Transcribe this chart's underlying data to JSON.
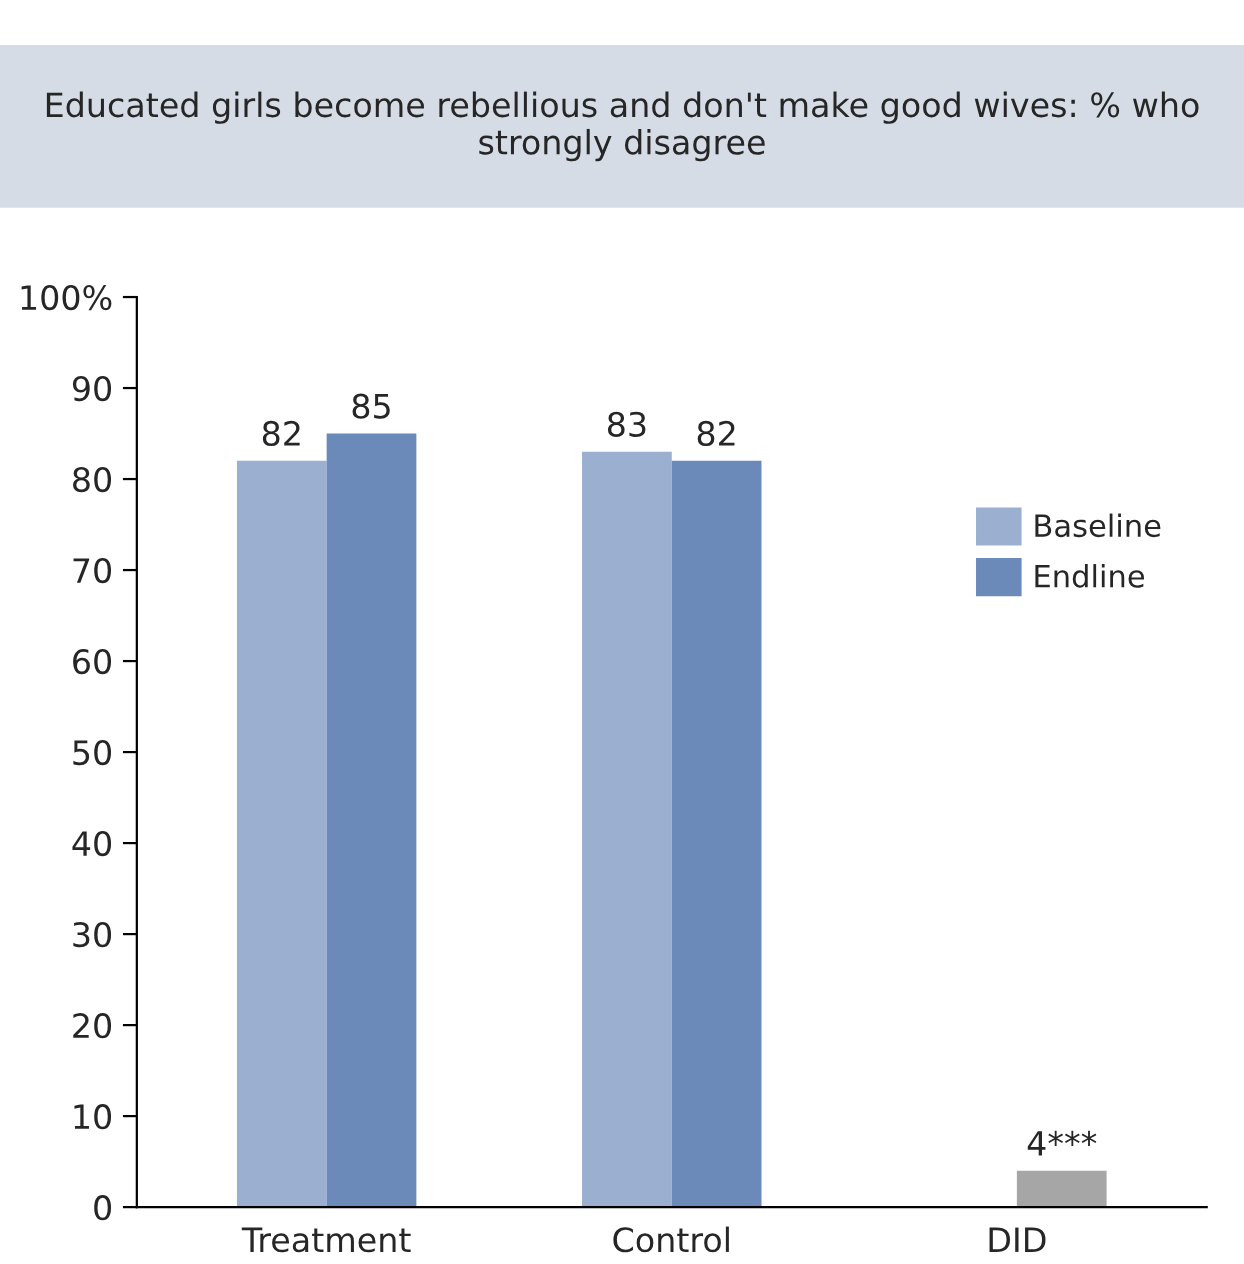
{
  "chart_data": {
    "type": "bar",
    "title": "Educated girls become rebellious and don't make good wives: % who strongly disagree",
    "categories": [
      "Treatment",
      "Control",
      "DID"
    ],
    "series": [
      {
        "name": "Baseline",
        "color": "#9bafd0",
        "values": [
          82,
          83,
          null
        ],
        "value_labels": [
          "82",
          "83",
          null
        ]
      },
      {
        "name": "Endline",
        "color": "#6b8aba",
        "colors": [
          "#6b8aba",
          "#6b8aba",
          "#a6a6a6"
        ],
        "values": [
          85,
          82,
          4
        ],
        "value_labels": [
          "85",
          "82",
          "4***"
        ]
      }
    ],
    "ylim": [
      0,
      100
    ],
    "yticks": [
      0,
      10,
      20,
      30,
      40,
      50,
      60,
      70,
      80,
      90,
      {
        "value": 100,
        "label": "100%"
      }
    ],
    "grid": false,
    "legend": "right"
  }
}
